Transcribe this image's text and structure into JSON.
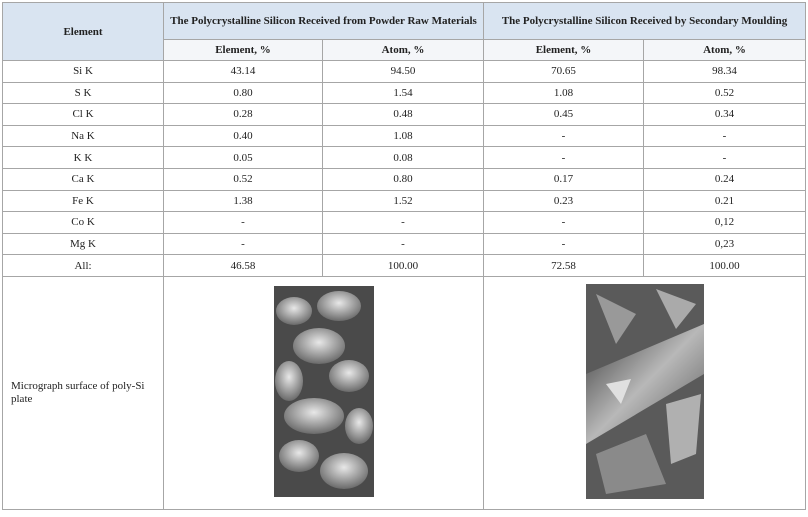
{
  "table": {
    "header": {
      "first": "Element",
      "groups": [
        "The Polycrystalline Silicon Received from Powder Raw Materials",
        "The Polycrystalline Silicon Received by Secondary Moulding"
      ],
      "subheaders": [
        "Element, %",
        "Atom, %",
        "Element, %",
        "Atom, %"
      ]
    },
    "rows": [
      [
        "Si K",
        "43.14",
        "94.50",
        "70.65",
        "98.34"
      ],
      [
        "S K",
        "0.80",
        "1.54",
        "1.08",
        "0.52"
      ],
      [
        "Cl K",
        "0.28",
        "0.48",
        "0.45",
        "0.34"
      ],
      [
        "Na K",
        "0.40",
        "1.08",
        "-",
        "-"
      ],
      [
        "K K",
        "0.05",
        "0.08",
        "-",
        "-"
      ],
      [
        "Ca K",
        "0.52",
        "0.80",
        "0.17",
        "0.24"
      ],
      [
        "Fe K",
        "1.38",
        "1.52",
        "0.23",
        "0.21"
      ],
      [
        "Co K",
        "-",
        "-",
        "-",
        "0,12"
      ],
      [
        "Mg K",
        "-",
        "-",
        "-",
        "0,23"
      ],
      [
        "All:",
        "46.58",
        "100.00",
        "72.58",
        "100.00"
      ]
    ],
    "micrograph_label": "Micrograph surface of poly-Si plate"
  }
}
